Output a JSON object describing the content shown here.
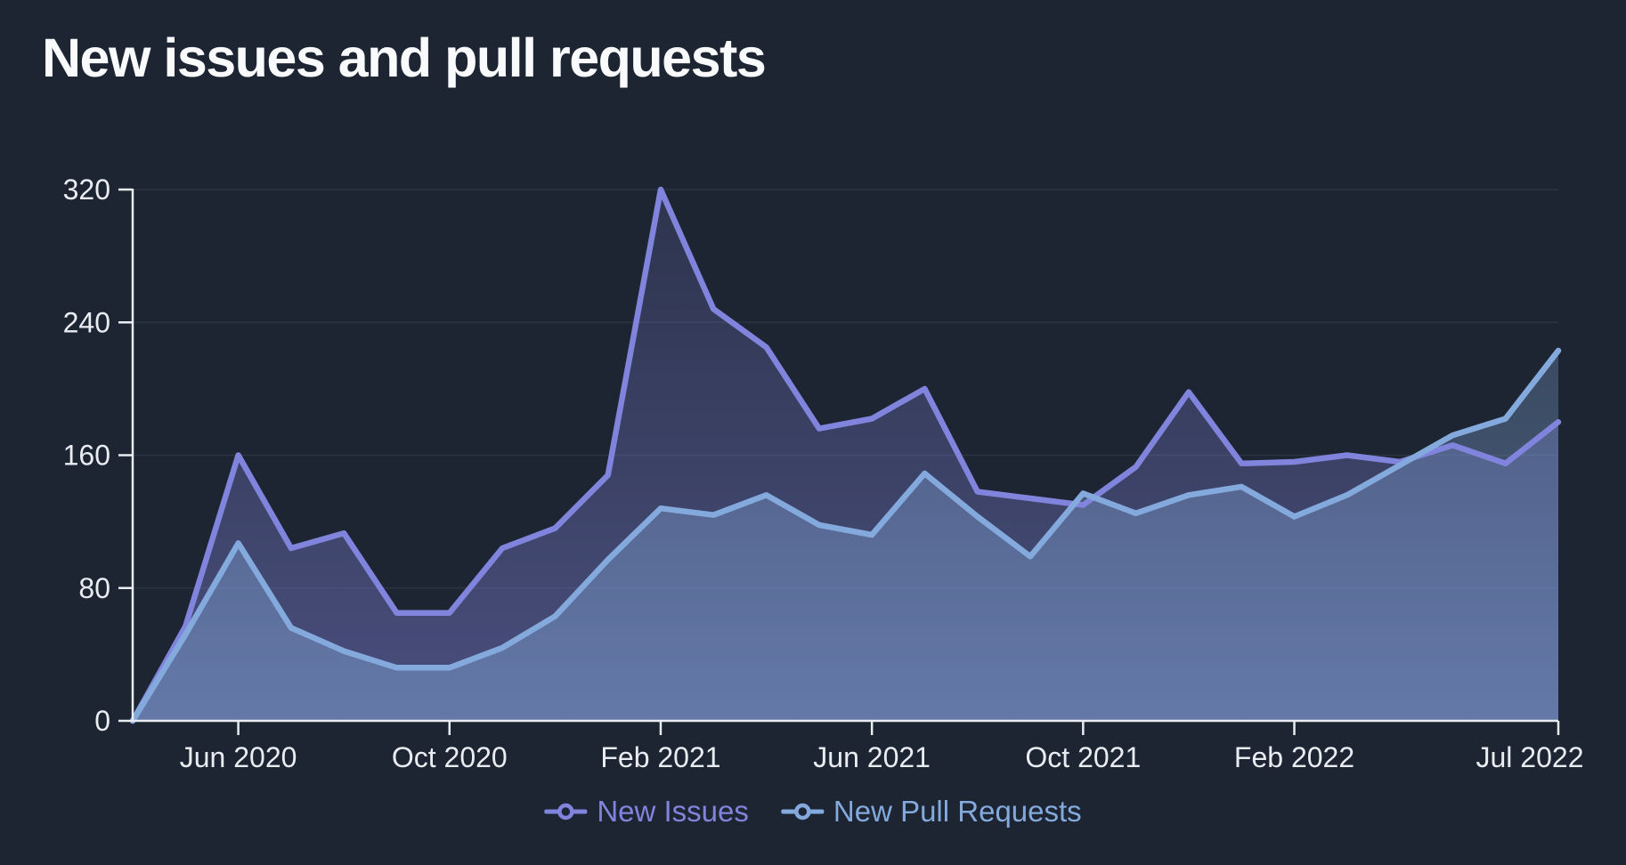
{
  "title": "New issues and pull requests",
  "colors": {
    "background": "#1d2532",
    "title": "#f8fafc",
    "axis": "#e9edf2",
    "tick_label": "#e9edf2",
    "grid": "#2a3343",
    "new_issues": "#8184dc",
    "new_pull_requests": "#84aadd"
  },
  "chart_data": {
    "type": "area",
    "title": "New issues and pull requests",
    "x": [
      "Apr 2020",
      "May 2020",
      "Jun 2020",
      "Jul 2020",
      "Aug 2020",
      "Sep 2020",
      "Oct 2020",
      "Nov 2020",
      "Dec 2020",
      "Jan 2021",
      "Feb 2021",
      "Mar 2021",
      "Apr 2021",
      "May 2021",
      "Jun 2021",
      "Jul 2021",
      "Aug 2021",
      "Sep 2021",
      "Oct 2021",
      "Nov 2021",
      "Dec 2021",
      "Jan 2022",
      "Feb 2022",
      "Mar 2022",
      "Apr 2022",
      "May 2022",
      "Jun 2022",
      "Jul 2022"
    ],
    "series": [
      {
        "name": "New Issues",
        "color": "#8184dc",
        "values": [
          0,
          57,
          160,
          104,
          113,
          65,
          65,
          104,
          116,
          148,
          320,
          248,
          225,
          176,
          182,
          200,
          138,
          134,
          130,
          153,
          198,
          155,
          156,
          160,
          156,
          166,
          155,
          180
        ]
      },
      {
        "name": "New Pull Requests",
        "color": "#84aadd",
        "values": [
          0,
          52,
          107,
          56,
          42,
          32,
          32,
          44,
          63,
          97,
          128,
          124,
          136,
          118,
          112,
          149,
          123,
          99,
          137,
          125,
          136,
          141,
          123,
          136,
          154,
          172,
          182,
          223
        ]
      }
    ],
    "xticks": [
      {
        "label": "Jun 2020",
        "index": 2
      },
      {
        "label": "Oct 2020",
        "index": 6
      },
      {
        "label": "Feb 2021",
        "index": 10
      },
      {
        "label": "Jun 2021",
        "index": 14
      },
      {
        "label": "Oct 2021",
        "index": 18
      },
      {
        "label": "Feb 2022",
        "index": 22
      },
      {
        "label": "Jul 2022",
        "index": 27
      }
    ],
    "yticks": [
      0,
      80,
      160,
      240,
      320
    ],
    "ylim": [
      0,
      320
    ],
    "grid": true,
    "legend_position": "bottom"
  }
}
